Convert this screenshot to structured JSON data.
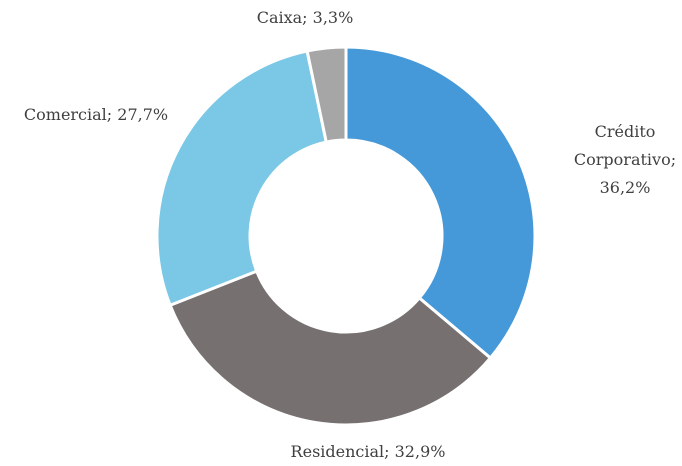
{
  "chart_data": {
    "type": "donut",
    "values": [
      36.2,
      32.9,
      27.7,
      3.3
    ],
    "value_labels": [
      "Crédito Corporativo; 36,2%",
      "Residencial; 32,9%",
      "Comercial; 27,7%",
      "Caixa; 3,3%"
    ],
    "colors": [
      "#4599d9",
      "#767170",
      "#7ac7e6",
      "#a6a6a6"
    ]
  }
}
